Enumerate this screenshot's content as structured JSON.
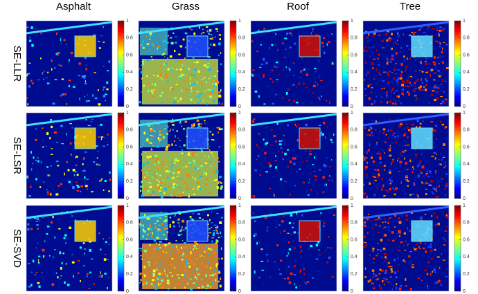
{
  "columns": [
    "Asphalt",
    "Grass",
    "Roof",
    "Tree"
  ],
  "rows": [
    "SE-LLR",
    "SE-LSR",
    "SE-SVD"
  ],
  "colorbar_ticks": [
    0,
    0.2,
    0.4,
    0.6,
    0.8,
    1
  ]
}
